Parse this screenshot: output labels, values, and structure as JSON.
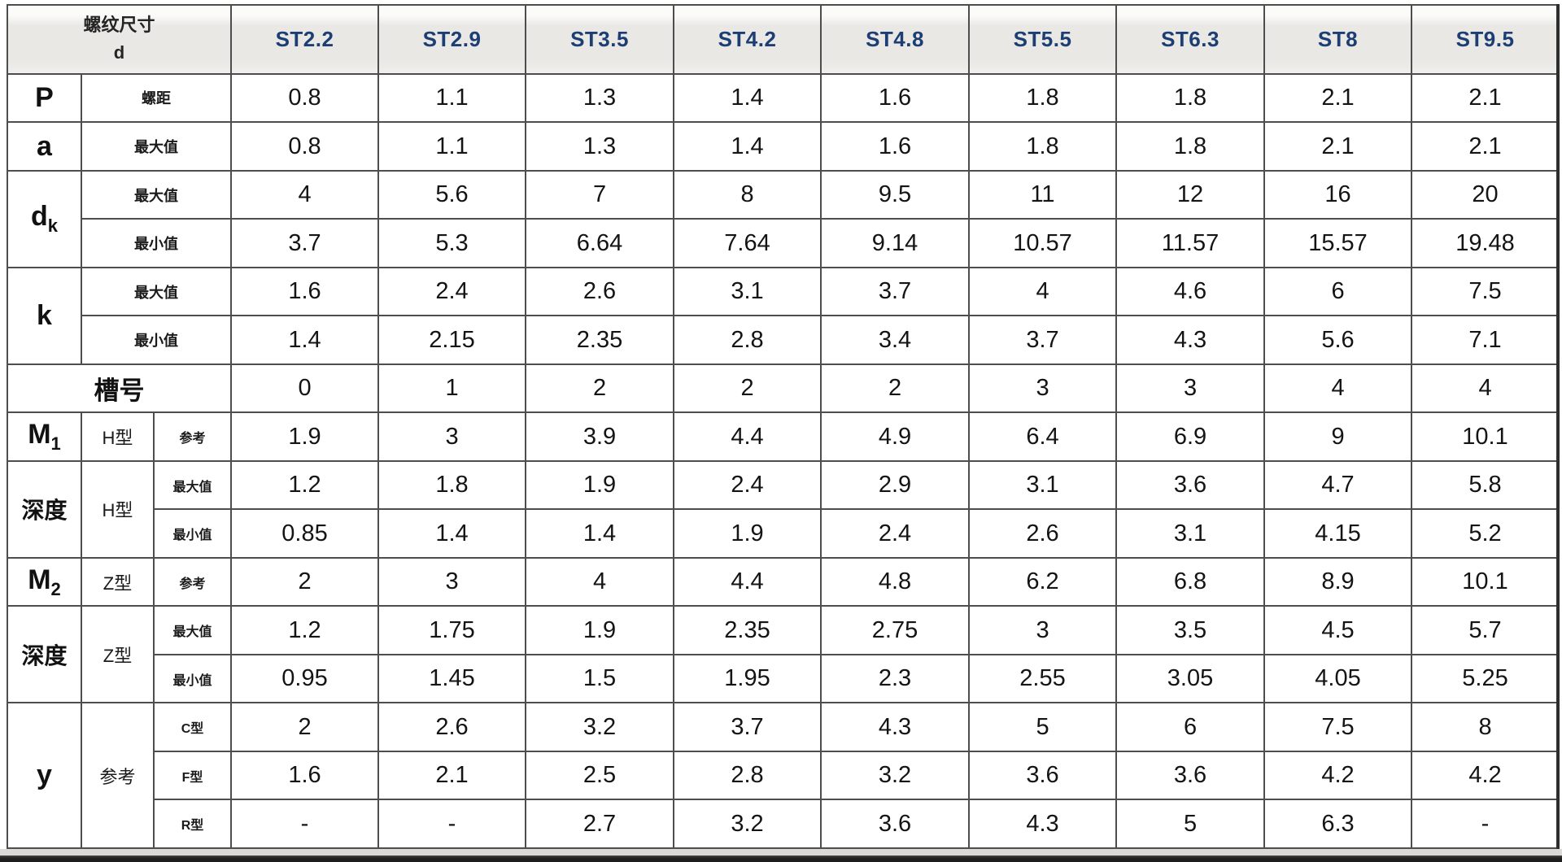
{
  "table": {
    "corner": {
      "title": "螺纹尺寸",
      "sub": "d"
    },
    "columns": [
      "ST2.2",
      "ST2.9",
      "ST3.5",
      "ST4.2",
      "ST4.8",
      "ST5.5",
      "ST6.3",
      "ST8",
      "ST9.5"
    ],
    "sections": [
      {
        "kind": "two",
        "label": "P",
        "rows": [
          {
            "sub": "螺距",
            "values": [
              "0.8",
              "1.1",
              "1.3",
              "1.4",
              "1.6",
              "1.8",
              "1.8",
              "2.1",
              "2.1"
            ]
          }
        ]
      },
      {
        "kind": "two",
        "label": "a",
        "rows": [
          {
            "sub": "最大值",
            "values": [
              "0.8",
              "1.1",
              "1.3",
              "1.4",
              "1.6",
              "1.8",
              "1.8",
              "2.1",
              "2.1"
            ]
          }
        ]
      },
      {
        "kind": "two",
        "label": "d",
        "labelSub": "k",
        "rows": [
          {
            "sub": "最大值",
            "values": [
              "4",
              "5.6",
              "7",
              "8",
              "9.5",
              "11",
              "12",
              "16",
              "20"
            ]
          },
          {
            "sub": "最小值",
            "values": [
              "3.7",
              "5.3",
              "6.64",
              "7.64",
              "9.14",
              "10.57",
              "11.57",
              "15.57",
              "19.48"
            ]
          }
        ]
      },
      {
        "kind": "two",
        "label": "k",
        "rows": [
          {
            "sub": "最大值",
            "values": [
              "1.6",
              "2.4",
              "2.6",
              "3.1",
              "3.7",
              "4",
              "4.6",
              "6",
              "7.5"
            ]
          },
          {
            "sub": "最小值",
            "values": [
              "1.4",
              "2.15",
              "2.35",
              "2.8",
              "3.4",
              "3.7",
              "4.3",
              "5.6",
              "7.1"
            ]
          }
        ]
      },
      {
        "kind": "full",
        "label": "槽号",
        "rows": [
          {
            "values": [
              "0",
              "1",
              "2",
              "2",
              "2",
              "3",
              "3",
              "4",
              "4"
            ]
          }
        ]
      },
      {
        "kind": "tri",
        "label": "M",
        "labelSub": "1",
        "mid": "H型",
        "rows": [
          {
            "sub": "参考",
            "values": [
              "1.9",
              "3",
              "3.9",
              "4.4",
              "4.9",
              "6.4",
              "6.9",
              "9",
              "10.1"
            ]
          }
        ]
      },
      {
        "kind": "tri",
        "label": "深度",
        "mid": "H型",
        "rows": [
          {
            "sub": "最大值",
            "values": [
              "1.2",
              "1.8",
              "1.9",
              "2.4",
              "2.9",
              "3.1",
              "3.6",
              "4.7",
              "5.8"
            ]
          },
          {
            "sub": "最小值",
            "values": [
              "0.85",
              "1.4",
              "1.4",
              "1.9",
              "2.4",
              "2.6",
              "3.1",
              "4.15",
              "5.2"
            ]
          }
        ]
      },
      {
        "kind": "tri",
        "label": "M",
        "labelSub": "2",
        "mid": "Z型",
        "rows": [
          {
            "sub": "参考",
            "values": [
              "2",
              "3",
              "4",
              "4.4",
              "4.8",
              "6.2",
              "6.8",
              "8.9",
              "10.1"
            ]
          }
        ]
      },
      {
        "kind": "tri",
        "label": "深度",
        "mid": "Z型",
        "rows": [
          {
            "sub": "最大值",
            "values": [
              "1.2",
              "1.75",
              "1.9",
              "2.35",
              "2.75",
              "3",
              "3.5",
              "4.5",
              "5.7"
            ]
          },
          {
            "sub": "最小值",
            "values": [
              "0.95",
              "1.45",
              "1.5",
              "1.95",
              "2.3",
              "2.55",
              "3.05",
              "4.05",
              "5.25"
            ]
          }
        ]
      },
      {
        "kind": "tri",
        "label": "y",
        "mid": "参考",
        "rows": [
          {
            "sub": "C型",
            "values": [
              "2",
              "2.6",
              "3.2",
              "3.7",
              "4.3",
              "5",
              "6",
              "7.5",
              "8"
            ]
          },
          {
            "sub": "F型",
            "values": [
              "1.6",
              "2.1",
              "2.5",
              "2.8",
              "3.2",
              "3.6",
              "3.6",
              "4.2",
              "4.2"
            ]
          },
          {
            "sub": "R型",
            "values": [
              "-",
              "-",
              "2.7",
              "3.2",
              "3.6",
              "4.3",
              "5",
              "6.3",
              "-"
            ]
          }
        ]
      }
    ]
  },
  "colors": {
    "header_text": "#1c3e74",
    "grid": "#4d4d4d",
    "header_bg": "#e9e8e5",
    "value_text": "#141414"
  }
}
